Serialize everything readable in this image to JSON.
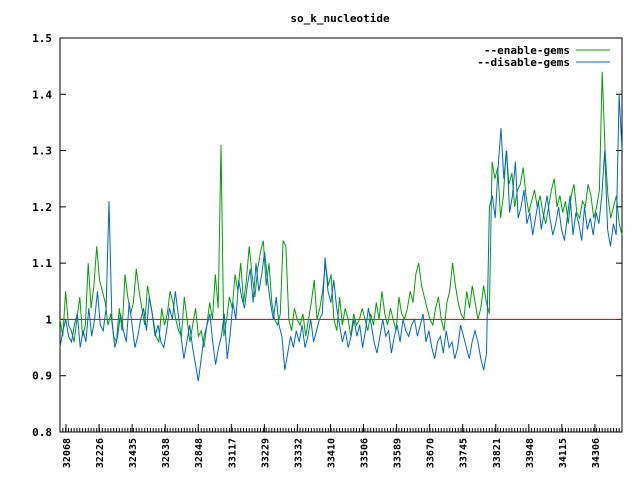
{
  "chart_data": {
    "type": "line",
    "title": "so_k_nucleotide",
    "xlabel": "",
    "ylabel": "",
    "ylim": [
      0.8,
      1.5
    ],
    "yticks": [
      "0.8",
      "0.9",
      "1",
      "1.1",
      "1.2",
      "1.3",
      "1.4",
      "1.5"
    ],
    "ytick_values": [
      0.8,
      0.9,
      1.0,
      1.1,
      1.2,
      1.3,
      1.4,
      1.5
    ],
    "xtick_labels": [
      "32068",
      "32226",
      "32435",
      "32638",
      "32848",
      "33117",
      "33229",
      "33332",
      "33410",
      "33506",
      "33589",
      "33670",
      "33745",
      "33821",
      "33948",
      "34115",
      "34306"
    ],
    "legend_position": "top-right",
    "reference_line": {
      "value": 1.0,
      "color": "#cc0000"
    },
    "grid": false,
    "series": [
      {
        "name": "--enable-gems",
        "color": "#00a000",
        "values": [
          1.0,
          0.97,
          1.05,
          0.99,
          0.98,
          0.96,
          1.0,
          1.04,
          0.97,
          0.99,
          1.1,
          1.02,
          1.06,
          1.13,
          1.07,
          1.05,
          1.03,
          0.99,
          1.01,
          0.97,
          0.96,
          1.02,
          0.98,
          1.08,
          1.04,
          1.01,
          1.03,
          1.09,
          1.05,
          1.02,
          0.99,
          1.06,
          1.03,
          1.0,
          0.97,
          0.96,
          1.02,
          0.99,
          1.01,
          1.05,
          1.03,
          1.0,
          0.98,
          0.97,
          1.04,
          1.0,
          0.96,
          0.99,
          1.02,
          0.97,
          0.98,
          0.95,
          0.99,
          1.03,
          1.0,
          1.08,
          1.02,
          1.31,
          0.97,
          1.0,
          1.04,
          1.02,
          1.08,
          1.05,
          1.1,
          1.03,
          1.07,
          1.13,
          1.08,
          1.04,
          1.09,
          1.12,
          1.14,
          1.06,
          1.1,
          1.03,
          1.0,
          0.99,
          1.01,
          1.14,
          1.13,
          1.0,
          0.98,
          1.02,
          1.0,
          0.99,
          1.01,
          0.97,
          1.0,
          1.03,
          1.07,
          1.0,
          1.02,
          1.05,
          1.1,
          1.06,
          1.08,
          1.0,
          0.98,
          1.04,
          0.99,
          1.02,
          1.0,
          0.97,
          1.01,
          0.99,
          1.0,
          1.02,
          1.0,
          0.98,
          1.01,
          0.99,
          1.03,
          1.0,
          1.05,
          1.01,
          0.99,
          1.02,
          1.0,
          0.98,
          1.04,
          1.01,
          1.0,
          1.02,
          1.05,
          1.03,
          1.08,
          1.1,
          1.06,
          1.04,
          1.02,
          1.0,
          0.99,
          1.02,
          1.04,
          1.0,
          0.98,
          1.03,
          1.05,
          1.1,
          1.06,
          1.03,
          1.01,
          1.0,
          1.05,
          1.02,
          1.06,
          1.03,
          1.0,
          1.02,
          1.06,
          1.03,
          1.01,
          1.28,
          1.25,
          1.27,
          1.18,
          1.22,
          1.3,
          1.24,
          1.26,
          1.2,
          1.23,
          1.24,
          1.27,
          1.22,
          1.19,
          1.21,
          1.23,
          1.2,
          1.22,
          1.19,
          1.17,
          1.2,
          1.23,
          1.25,
          1.2,
          1.22,
          1.19,
          1.21,
          1.17,
          1.22,
          1.24,
          1.19,
          1.18,
          1.21,
          1.2,
          1.24,
          1.22,
          1.18,
          1.2,
          1.23,
          1.44,
          1.3,
          1.22,
          1.18,
          1.2,
          1.22,
          1.17,
          1.15
        ]
      },
      {
        "name": "--disable-gems",
        "color": "#0066cc",
        "values": [
          0.95,
          0.98,
          1.0,
          0.97,
          0.96,
          0.99,
          1.01,
          0.95,
          0.98,
          0.96,
          1.02,
          0.97,
          1.0,
          1.05,
          0.99,
          0.98,
          1.02,
          1.21,
          1.0,
          0.95,
          0.97,
          1.01,
          0.98,
          0.96,
          1.03,
          0.99,
          0.95,
          0.97,
          1.0,
          1.02,
          0.98,
          1.04,
          1.01,
          0.97,
          0.99,
          0.96,
          0.95,
          0.98,
          1.02,
          1.0,
          1.05,
          1.01,
          0.97,
          0.93,
          0.96,
          0.99,
          0.95,
          0.92,
          0.89,
          0.93,
          0.97,
          0.99,
          1.01,
          0.96,
          0.92,
          0.95,
          0.97,
          1.01,
          0.93,
          0.97,
          1.03,
          1.0,
          1.07,
          1.04,
          1.02,
          1.06,
          1.09,
          1.03,
          1.1,
          1.05,
          1.08,
          1.12,
          1.07,
          1.03,
          1.0,
          1.04,
          0.99,
          0.97,
          0.91,
          0.94,
          0.97,
          0.95,
          0.98,
          0.96,
          0.99,
          0.95,
          0.97,
          1.0,
          0.96,
          0.98,
          1.0,
          1.01,
          1.11,
          1.05,
          1.03,
          1.07,
          1.02,
          0.99,
          0.96,
          0.98,
          0.95,
          0.97,
          1.0,
          0.97,
          0.99,
          0.95,
          0.98,
          1.02,
          0.99,
          0.96,
          0.94,
          0.97,
          1.0,
          0.97,
          0.98,
          0.94,
          0.97,
          0.99,
          0.96,
          1.0,
          0.98,
          0.97,
          0.99,
          1.0,
          0.97,
          0.99,
          1.01,
          0.96,
          0.98,
          0.95,
          0.93,
          0.96,
          0.97,
          0.94,
          0.98,
          0.95,
          0.96,
          0.93,
          0.95,
          0.99,
          0.97,
          0.95,
          0.93,
          0.96,
          0.98,
          0.96,
          0.93,
          0.91,
          0.94,
          1.2,
          1.22,
          1.18,
          1.27,
          1.34,
          1.25,
          1.3,
          1.19,
          1.22,
          1.28,
          1.18,
          1.2,
          1.23,
          1.17,
          1.19,
          1.15,
          1.18,
          1.21,
          1.16,
          1.19,
          1.22,
          1.18,
          1.15,
          1.17,
          1.2,
          1.16,
          1.14,
          1.18,
          1.22,
          1.15,
          1.19,
          1.17,
          1.14,
          1.2,
          1.16,
          1.18,
          1.15,
          1.19,
          1.17,
          1.22,
          1.3,
          1.16,
          1.13,
          1.17,
          1.15,
          1.4,
          1.3
        ]
      }
    ]
  }
}
